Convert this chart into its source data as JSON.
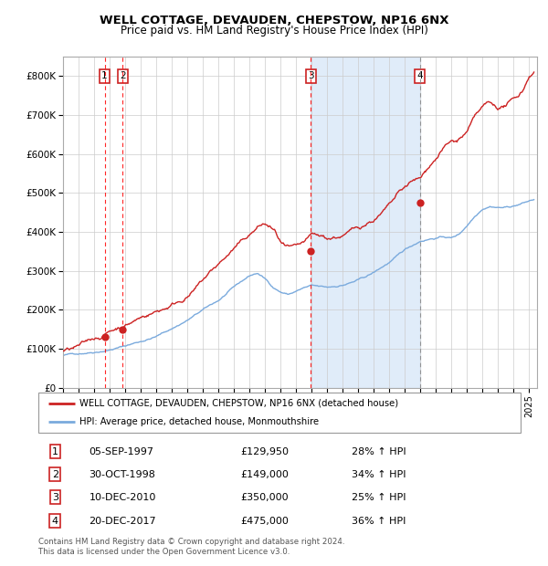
{
  "title": "WELL COTTAGE, DEVAUDEN, CHEPSTOW, NP16 6NX",
  "subtitle": "Price paid vs. HM Land Registry's House Price Index (HPI)",
  "legend_line1": "WELL COTTAGE, DEVAUDEN, CHEPSTOW, NP16 6NX (detached house)",
  "legend_line2": "HPI: Average price, detached house, Monmouthshire",
  "footer1": "Contains HM Land Registry data © Crown copyright and database right 2024.",
  "footer2": "This data is licensed under the Open Government Licence v3.0.",
  "transactions": [
    {
      "num": 1,
      "date": "05-SEP-1997",
      "price": 129950,
      "pct": "28%",
      "dir": "↑"
    },
    {
      "num": 2,
      "date": "30-OCT-1998",
      "price": 149000,
      "pct": "34%",
      "dir": "↑"
    },
    {
      "num": 3,
      "date": "10-DEC-2010",
      "price": 350000,
      "pct": "25%",
      "dir": "↑"
    },
    {
      "num": 4,
      "date": "20-DEC-2017",
      "price": 475000,
      "pct": "36%",
      "dir": "↑"
    }
  ],
  "transaction_dates_decimal": [
    1997.68,
    1998.83,
    2010.94,
    2017.96
  ],
  "transaction_prices": [
    129950,
    149000,
    350000,
    475000
  ],
  "red_vline_dates": [
    1997.68,
    1998.83,
    2010.94
  ],
  "grey_vline_date": 2017.96,
  "shade_start": 2010.94,
  "shade_end": 2017.96,
  "hpi_color": "#7aaadd",
  "price_color": "#cc2222",
  "dot_color": "#cc2222",
  "ylim": [
    0,
    850000
  ],
  "xlim_start": 1995.0,
  "xlim_end": 2025.5,
  "yticks": [
    0,
    100000,
    200000,
    300000,
    400000,
    500000,
    600000,
    700000,
    800000
  ],
  "ytick_labels": [
    "£0",
    "£100K",
    "£200K",
    "£300K",
    "£400K",
    "£500K",
    "£600K",
    "£700K",
    "£800K"
  ],
  "xticks": [
    1995,
    1996,
    1997,
    1998,
    1999,
    2000,
    2001,
    2002,
    2003,
    2004,
    2005,
    2006,
    2007,
    2008,
    2009,
    2010,
    2011,
    2012,
    2013,
    2014,
    2015,
    2016,
    2017,
    2018,
    2019,
    2020,
    2021,
    2022,
    2023,
    2024,
    2025
  ],
  "hpi_anchors_x": [
    1995,
    1996,
    1997,
    1998,
    1999,
    2000,
    2001,
    2002,
    2003,
    2004,
    2005,
    2006,
    2007,
    2007.5,
    2008,
    2008.5,
    2009,
    2009.5,
    2010,
    2010.5,
    2011,
    2011.5,
    2012,
    2012.5,
    2013,
    2013.5,
    2014,
    2014.5,
    2015,
    2015.5,
    2016,
    2016.5,
    2017,
    2017.5,
    2018,
    2018.5,
    2019,
    2019.5,
    2020,
    2020.5,
    2021,
    2021.5,
    2022,
    2022.5,
    2023,
    2023.5,
    2024,
    2024.5,
    2025.3
  ],
  "hpi_anchors_y": [
    83000,
    88000,
    95000,
    103000,
    113000,
    125000,
    138000,
    158000,
    180000,
    205000,
    228000,
    260000,
    288000,
    295000,
    280000,
    260000,
    248000,
    242000,
    250000,
    258000,
    262000,
    258000,
    255000,
    258000,
    262000,
    268000,
    274000,
    282000,
    292000,
    305000,
    318000,
    332000,
    348000,
    360000,
    372000,
    378000,
    382000,
    385000,
    382000,
    392000,
    415000,
    440000,
    462000,
    470000,
    468000,
    468000,
    472000,
    478000,
    488000
  ],
  "price_anchors_x": [
    1995,
    1995.5,
    1996,
    1996.5,
    1997,
    1997.5,
    1998,
    1998.5,
    1999,
    1999.5,
    2000,
    2000.5,
    2001,
    2001.5,
    2002,
    2002.5,
    2003,
    2003.5,
    2004,
    2004.5,
    2005,
    2005.5,
    2006,
    2006.5,
    2007,
    2007.3,
    2007.7,
    2008,
    2008.3,
    2008.6,
    2009,
    2009.3,
    2009.6,
    2010,
    2010.3,
    2010.6,
    2010.94,
    2011,
    2011.3,
    2011.6,
    2012,
    2012.3,
    2012.6,
    2013,
    2013.3,
    2013.6,
    2014,
    2014.3,
    2014.6,
    2015,
    2015.3,
    2015.6,
    2016,
    2016.3,
    2016.6,
    2017,
    2017.3,
    2017.6,
    2017.96,
    2018,
    2018.3,
    2018.6,
    2019,
    2019.3,
    2019.6,
    2020,
    2020.3,
    2020.6,
    2021,
    2021.3,
    2021.6,
    2022,
    2022.3,
    2022.6,
    2023,
    2023.3,
    2023.6,
    2024,
    2024.3,
    2024.6,
    2025,
    2025.3
  ],
  "price_anchors_y": [
    95000,
    98000,
    102000,
    108000,
    118000,
    126000,
    138000,
    148000,
    158000,
    168000,
    178000,
    188000,
    196000,
    205000,
    216000,
    228000,
    242000,
    258000,
    278000,
    298000,
    316000,
    335000,
    355000,
    368000,
    385000,
    395000,
    408000,
    410000,
    402000,
    390000,
    360000,
    345000,
    338000,
    332000,
    334000,
    340000,
    350000,
    352000,
    348000,
    345000,
    340000,
    342000,
    345000,
    348000,
    352000,
    358000,
    365000,
    372000,
    380000,
    390000,
    398000,
    408000,
    420000,
    432000,
    445000,
    458000,
    468000,
    472000,
    474000,
    475000,
    490000,
    510000,
    528000,
    548000,
    560000,
    570000,
    568000,
    578000,
    590000,
    610000,
    628000,
    642000,
    650000,
    645000,
    638000,
    640000,
    648000,
    655000,
    665000,
    680000,
    720000,
    730000
  ]
}
